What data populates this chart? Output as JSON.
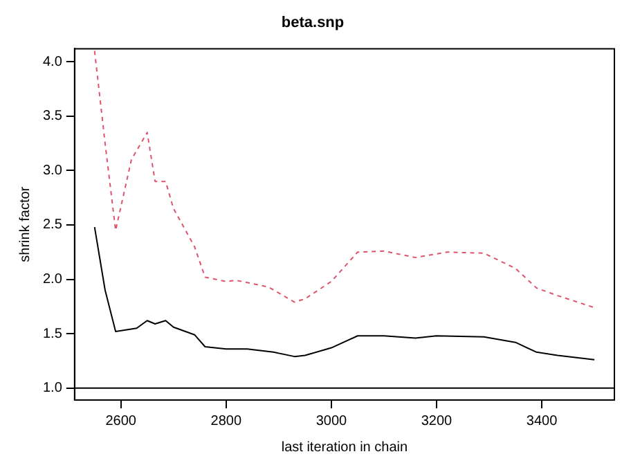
{
  "chart_data": {
    "type": "line",
    "title": "beta.snp",
    "xlabel": "last iteration in chain",
    "ylabel": "shrink factor",
    "xlim": [
      2512,
      3538
    ],
    "xticks": [
      2600,
      2800,
      3000,
      3200,
      3400
    ],
    "ylim": [
      0.89,
      4.12
    ],
    "yticks": [
      {
        "value": 1,
        "label": "1.0"
      },
      {
        "value": 1.5,
        "label": "1.5"
      },
      {
        "value": 2,
        "label": "2.0"
      },
      {
        "value": 2.5,
        "label": "2.5"
      },
      {
        "value": 3,
        "label": "3.0"
      },
      {
        "value": 3.5,
        "label": "3.5"
      },
      {
        "value": 4,
        "label": "4.0"
      }
    ],
    "grid": false,
    "legend": false,
    "marker": "none",
    "ref_lines": [
      {
        "axis": "y",
        "value": 1,
        "color": "#000000",
        "line_style": "solid"
      }
    ],
    "series": [
      {
        "color": "#000000",
        "line_style": "solid",
        "x": [
          2550,
          2570,
          2590,
          2630,
          2650,
          2665,
          2685,
          2700,
          2740,
          2760,
          2800,
          2840,
          2890,
          2930,
          2950,
          3000,
          3050,
          3100,
          3160,
          3200,
          3290,
          3350,
          3390,
          3430,
          3500
        ],
        "values": [
          2.48,
          1.9,
          1.52,
          1.55,
          1.62,
          1.59,
          1.62,
          1.56,
          1.49,
          1.38,
          1.36,
          1.36,
          1.33,
          1.29,
          1.3,
          1.37,
          1.48,
          1.48,
          1.46,
          1.48,
          1.47,
          1.42,
          1.33,
          1.3,
          1.26
        ]
      },
      {
        "color": "#df536b",
        "line_style": "dashed",
        "x": [
          2550,
          2570,
          2590,
          2620,
          2650,
          2665,
          2685,
          2700,
          2740,
          2760,
          2800,
          2820,
          2880,
          2930,
          2950,
          3000,
          3050,
          3100,
          3160,
          3220,
          3290,
          3350,
          3390,
          3430,
          3500
        ],
        "values": [
          4.1,
          3.25,
          2.45,
          3.1,
          3.35,
          2.9,
          2.9,
          2.65,
          2.3,
          2.02,
          1.98,
          1.99,
          1.93,
          1.79,
          1.82,
          1.98,
          2.25,
          2.26,
          2.2,
          2.25,
          2.24,
          2.1,
          1.92,
          1.85,
          1.74
        ]
      }
    ]
  }
}
